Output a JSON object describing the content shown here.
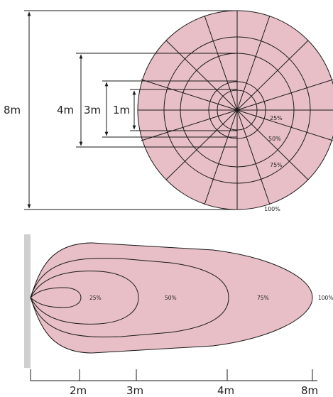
{
  "top_view": {
    "dimension_labels": {
      "d8": "8m",
      "d4": "4m",
      "d3": "3m",
      "d1": "1m"
    },
    "ring_labels": [
      "25%",
      "50%",
      "75%",
      "100%"
    ],
    "fill_color": "#e8bfc6"
  },
  "side_view": {
    "zone_labels": [
      "25%",
      "50%",
      "75%",
      "100%"
    ],
    "axis_ticks": [
      "2m",
      "3m",
      "4m",
      "8m"
    ],
    "wall_color": "#cfcfcf",
    "fill_color": "#e8bfc6"
  }
}
